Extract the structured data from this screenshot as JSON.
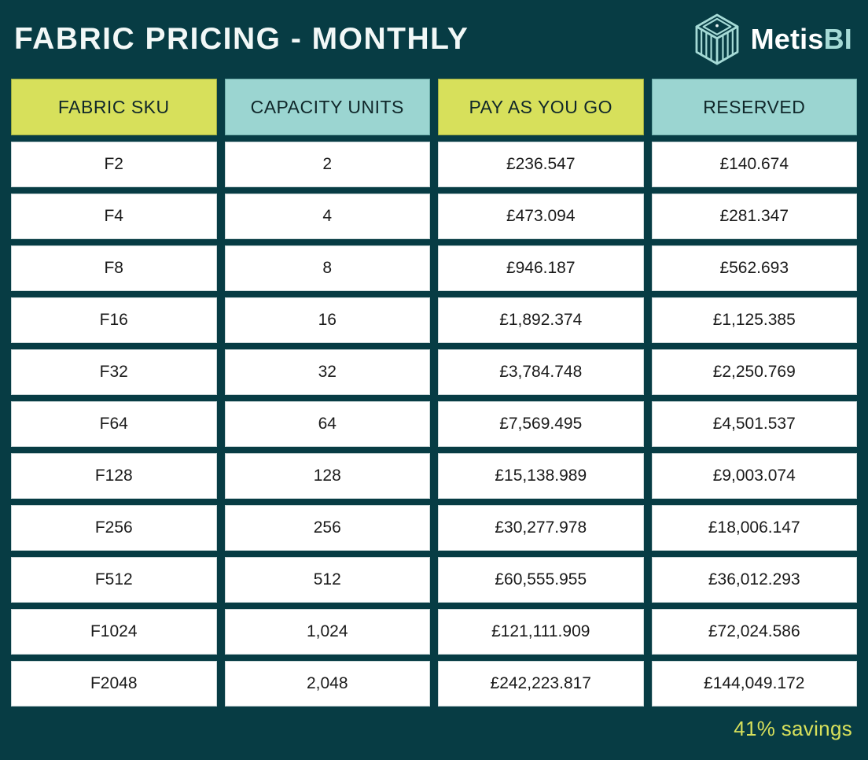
{
  "title": "FABRIC PRICING - MONTHLY",
  "logo": {
    "name": "Metis",
    "suffix": "BI"
  },
  "table": {
    "columns": [
      "FABRIC SKU",
      "CAPACITY UNITS",
      "PAY AS YOU GO",
      "RESERVED"
    ],
    "rows": [
      [
        "F2",
        "2",
        "£236.547",
        "£140.674"
      ],
      [
        "F4",
        "4",
        "£473.094",
        "£281.347"
      ],
      [
        "F8",
        "8",
        "£946.187",
        "£562.693"
      ],
      [
        "F16",
        "16",
        "£1,892.374",
        "£1,125.385"
      ],
      [
        "F32",
        "32",
        "£3,784.748",
        "£2,250.769"
      ],
      [
        "F64",
        "64",
        "£7,569.495",
        "£4,501.537"
      ],
      [
        "F128",
        "128",
        "£15,138.989",
        "£9,003.074"
      ],
      [
        "F256",
        "256",
        "£30,277.978",
        "£18,006.147"
      ],
      [
        "F512",
        "512",
        "£60,555.955",
        "£36,012.293"
      ],
      [
        "F1024",
        "1,024",
        "£121,111.909",
        "£72,024.586"
      ],
      [
        "F2048",
        "2,048",
        "£242,223.817",
        "£144,049.172"
      ]
    ]
  },
  "footer": {
    "savings_label": "41% savings"
  },
  "colors": {
    "bg": "#073c44",
    "accent-yellow": "#d7e05b",
    "accent-teal": "#9bd5d1",
    "cell-bg": "#ffffff",
    "cell-border": "#ccd8d9",
    "title-text": "#f2f8f7",
    "logo-teal": "#a5dad6"
  },
  "chart_data": {
    "type": "table",
    "title": "FABRIC PRICING - MONTHLY",
    "columns": [
      "FABRIC SKU",
      "CAPACITY UNITS",
      "PAY AS YOU GO",
      "RESERVED"
    ],
    "rows": [
      {
        "sku": "F2",
        "capacity_units": 2,
        "pay_as_you_go_gbp": 236.547,
        "reserved_gbp": 140.674
      },
      {
        "sku": "F4",
        "capacity_units": 4,
        "pay_as_you_go_gbp": 473.094,
        "reserved_gbp": 281.347
      },
      {
        "sku": "F8",
        "capacity_units": 8,
        "pay_as_you_go_gbp": 946.187,
        "reserved_gbp": 562.693
      },
      {
        "sku": "F16",
        "capacity_units": 16,
        "pay_as_you_go_gbp": 1892.374,
        "reserved_gbp": 1125.385
      },
      {
        "sku": "F32",
        "capacity_units": 32,
        "pay_as_you_go_gbp": 3784.748,
        "reserved_gbp": 2250.769
      },
      {
        "sku": "F64",
        "capacity_units": 64,
        "pay_as_you_go_gbp": 7569.495,
        "reserved_gbp": 4501.537
      },
      {
        "sku": "F128",
        "capacity_units": 128,
        "pay_as_you_go_gbp": 15138.989,
        "reserved_gbp": 9003.074
      },
      {
        "sku": "F256",
        "capacity_units": 256,
        "pay_as_you_go_gbp": 30277.978,
        "reserved_gbp": 18006.147
      },
      {
        "sku": "F512",
        "capacity_units": 512,
        "pay_as_you_go_gbp": 60555.955,
        "reserved_gbp": 36012.293
      },
      {
        "sku": "F1024",
        "capacity_units": 1024,
        "pay_as_you_go_gbp": 121111.909,
        "reserved_gbp": 72024.586
      },
      {
        "sku": "F2048",
        "capacity_units": 2048,
        "pay_as_you_go_gbp": 242223.817,
        "reserved_gbp": 144049.172
      }
    ],
    "annotations": [
      "41% savings"
    ],
    "currency": "GBP"
  }
}
